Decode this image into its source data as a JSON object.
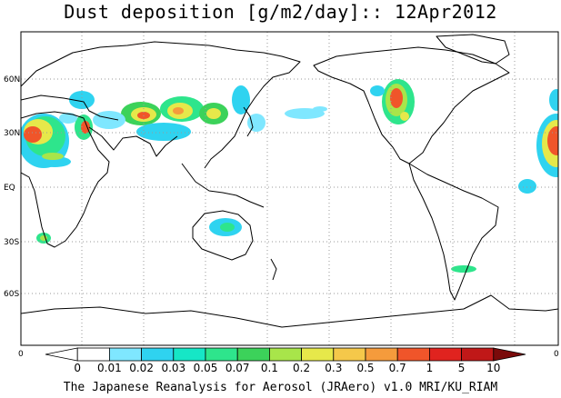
{
  "title": "Dust deposition [g/m2/day]:: 12Apr2012",
  "footer": "The Japanese Reanalysis for Aerosol (JRAero) v1.0 MRI/KU_RIAM",
  "lat_labels": [
    "60N",
    "30N",
    "EQ",
    "30S",
    "60S"
  ],
  "frame_labels": {
    "left": "0",
    "right": "0"
  },
  "colorbar": {
    "labels": [
      "0",
      "0.01",
      "0.02",
      "0.03",
      "0.05",
      "0.07",
      "0.1",
      "0.2",
      "0.3",
      "0.5",
      "0.7",
      "1",
      "5",
      "10"
    ],
    "colors": [
      "#ffffff",
      "#ffffff",
      "#7fe7ff",
      "#2fd3f0",
      "#16e6c6",
      "#2ee58c",
      "#3cd25a",
      "#a8e54a",
      "#e6e84a",
      "#f5c84a",
      "#f59b3c",
      "#f0552a",
      "#e0231f",
      "#c01818",
      "#7a0a0a"
    ]
  }
}
